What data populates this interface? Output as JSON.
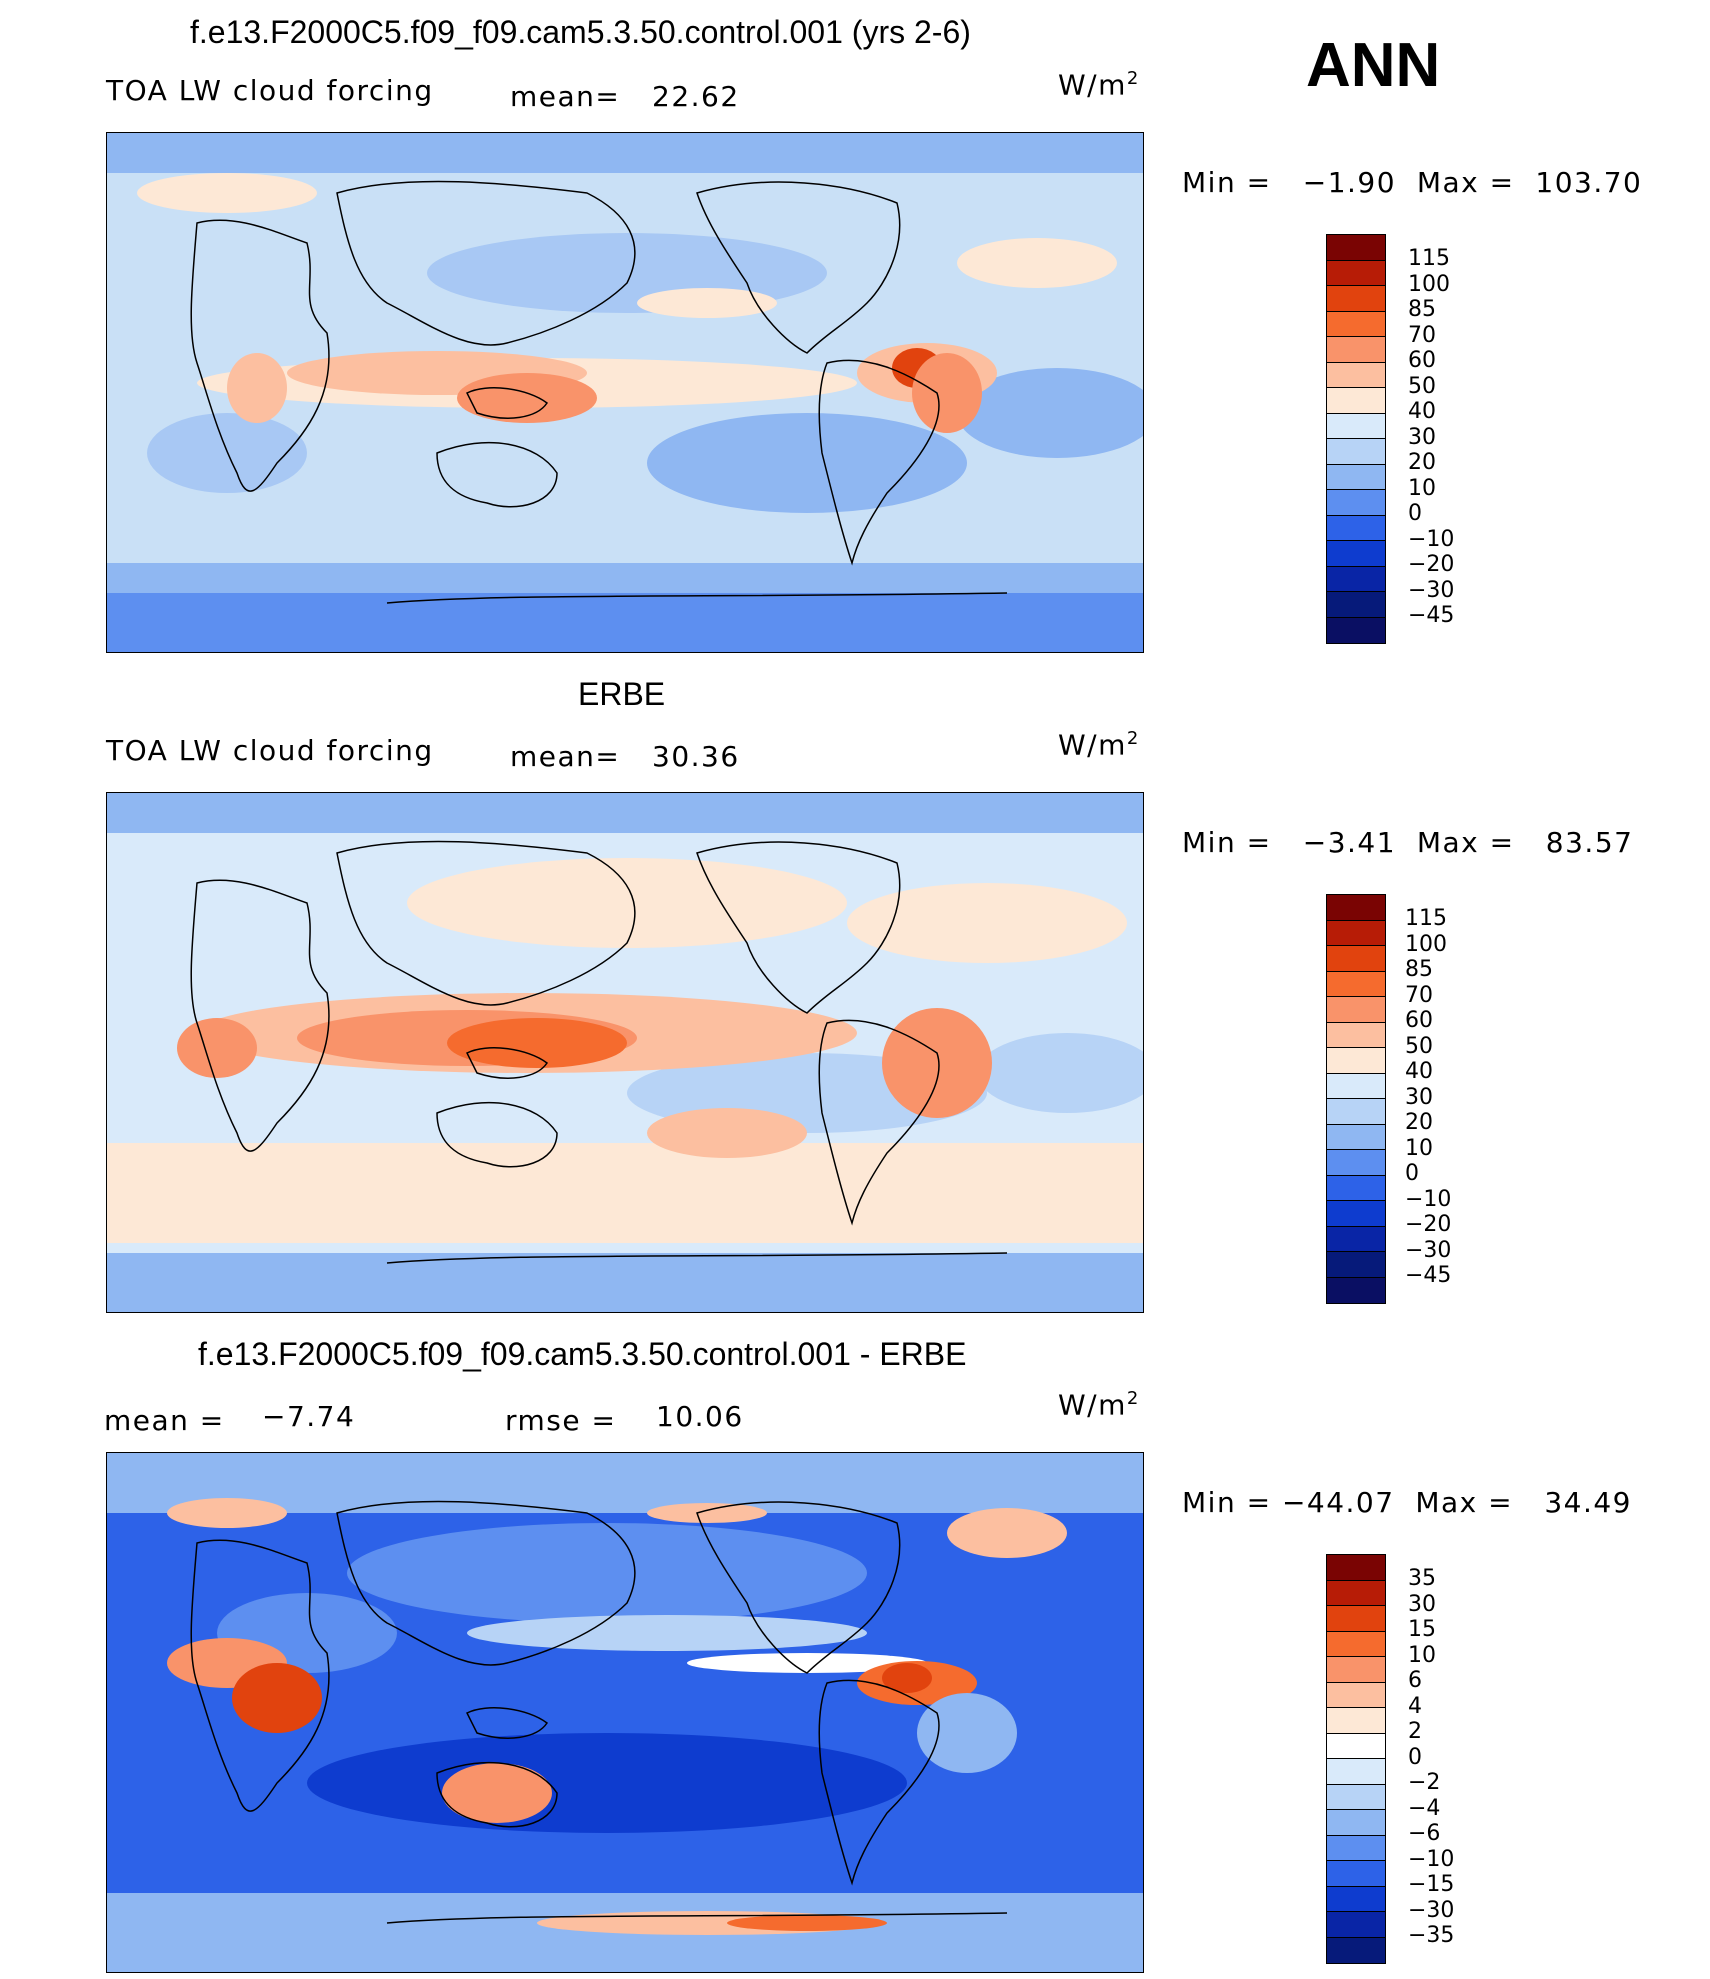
{
  "page": {
    "season": "ANN"
  },
  "panels": [
    {
      "title": "f.e13.F2000C5.f09_f09.cam5.3.50.control.001 (yrs 2-6)",
      "variable": "TOA LW cloud forcing",
      "stat_label": "mean=",
      "stat_value": "22.62",
      "units_base": "W/m",
      "units_exp": "2",
      "minmax": "Min =   −1.90  Max =  103.70",
      "colorbar_labels": [
        "115",
        "100",
        "85",
        "70",
        "60",
        "50",
        "40",
        "30",
        "20",
        "10",
        "0",
        "−10",
        "−20",
        "−30",
        "−45"
      ]
    },
    {
      "title": "ERBE",
      "variable": "TOA LW cloud forcing",
      "stat_label": "mean=",
      "stat_value": "30.36",
      "units_base": "W/m",
      "units_exp": "2",
      "minmax": "Min =   −3.41  Max =   83.57",
      "colorbar_labels": [
        "115",
        "100",
        "85",
        "70",
        "60",
        "50",
        "40",
        "30",
        "20",
        "10",
        "0",
        "−10",
        "−20",
        "−30",
        "−45"
      ]
    },
    {
      "title": "f.e13.F2000C5.f09_f09.cam5.3.50.control.001 - ERBE",
      "mean_label": "mean =",
      "mean_value": "−7.74",
      "rmse_label": "rmse =",
      "rmse_value": "10.06",
      "units_base": "W/m",
      "units_exp": "2",
      "minmax": "Min = −44.07  Max =   34.49",
      "colorbar_labels": [
        "35",
        "30",
        "15",
        "10",
        "6",
        "4",
        "2",
        "0",
        "−2",
        "−4",
        "−6",
        "−10",
        "−15",
        "−30",
        "−35"
      ]
    }
  ],
  "colors": {
    "abs_scale": [
      "#7a0403",
      "#b71c06",
      "#e1430e",
      "#f56b2e",
      "#f9936a",
      "#fcbfa0",
      "#fde8d6",
      "#d9eafa",
      "#b7d3f6",
      "#8fb7f2",
      "#5d8ff0",
      "#2d62e8",
      "#0e3ccf",
      "#0925a6",
      "#061a7a",
      "#0a0f63"
    ],
    "diff_scale": [
      "#7a0403",
      "#b71c06",
      "#e1430e",
      "#f56b2e",
      "#f9936a",
      "#fcbfa0",
      "#fde8d6",
      "#ffffff",
      "#d9eafa",
      "#b7d3f6",
      "#8fb7f2",
      "#5d8ff0",
      "#2d62e8",
      "#0e3ccf",
      "#0925a6",
      "#061a7a"
    ]
  }
}
